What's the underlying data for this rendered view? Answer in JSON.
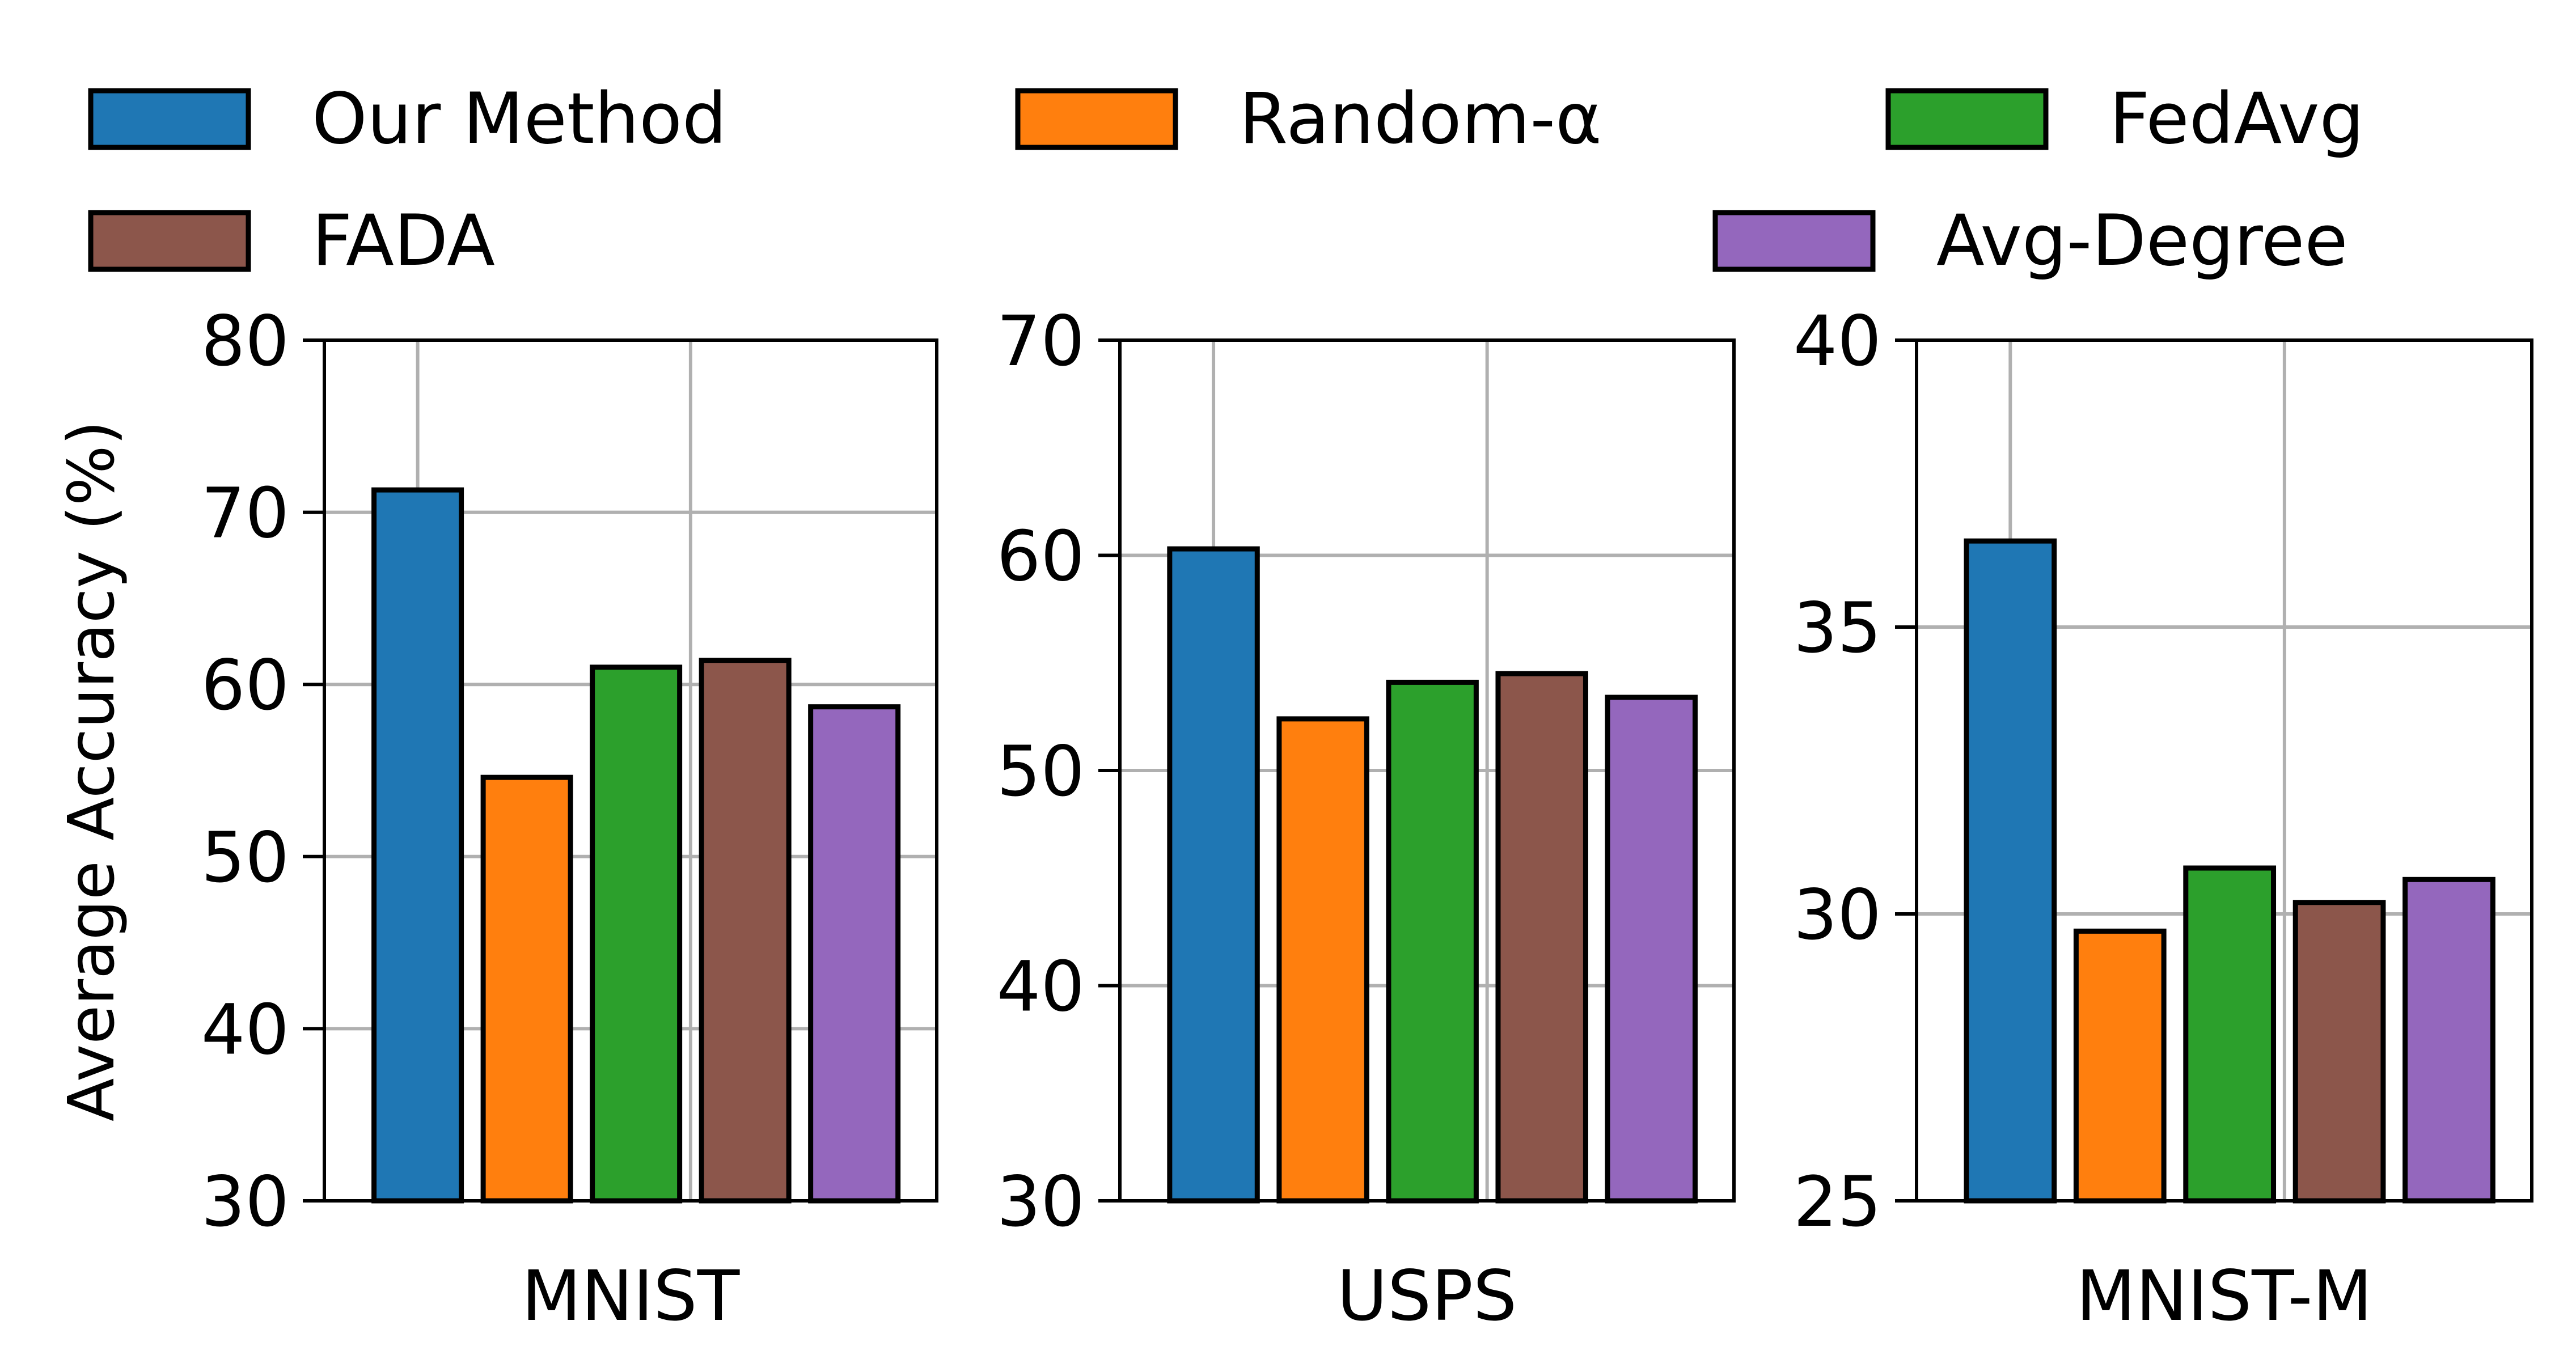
{
  "chart_data": [
    {
      "type": "bar",
      "categories": [
        "MNIST"
      ],
      "series": [
        {
          "name": "Our Method",
          "values": [
            71.3
          ]
        },
        {
          "name": "Random-α",
          "values": [
            54.6
          ]
        },
        {
          "name": "FedAvg",
          "values": [
            61.0
          ]
        },
        {
          "name": "FADA",
          "values": [
            61.4
          ]
        },
        {
          "name": "Avg-Degree",
          "values": [
            58.7
          ]
        }
      ],
      "ylim": [
        30,
        80
      ],
      "yticks": [
        30,
        40,
        50,
        60,
        70,
        80
      ],
      "xlabel": "MNIST",
      "ylabel": "Average Accuracy (%)",
      "grid": true
    },
    {
      "type": "bar",
      "categories": [
        "USPS"
      ],
      "series": [
        {
          "name": "Our Method",
          "values": [
            60.3
          ]
        },
        {
          "name": "Random-α",
          "values": [
            52.4
          ]
        },
        {
          "name": "FedAvg",
          "values": [
            54.1
          ]
        },
        {
          "name": "FADA",
          "values": [
            54.5
          ]
        },
        {
          "name": "Avg-Degree",
          "values": [
            53.4
          ]
        }
      ],
      "ylim": [
        30,
        70
      ],
      "yticks": [
        30,
        40,
        50,
        60,
        70
      ],
      "xlabel": "USPS",
      "ylabel": "",
      "grid": true
    },
    {
      "type": "bar",
      "categories": [
        "MNIST-M"
      ],
      "series": [
        {
          "name": "Our Method",
          "values": [
            36.5
          ]
        },
        {
          "name": "Random-α",
          "values": [
            29.7
          ]
        },
        {
          "name": "FedAvg",
          "values": [
            30.8
          ]
        },
        {
          "name": "FADA",
          "values": [
            30.2
          ]
        },
        {
          "name": "Avg-Degree",
          "values": [
            30.6
          ]
        }
      ],
      "ylim": [
        25,
        40
      ],
      "yticks": [
        25,
        30,
        35,
        40
      ],
      "xlabel": "MNIST-M",
      "ylabel": "",
      "grid": true
    }
  ],
  "legend": {
    "placement": "top",
    "items": [
      {
        "label": "Our Method",
        "color": "#1f77b4"
      },
      {
        "label": "Random-α",
        "color": "#ff7f0e"
      },
      {
        "label": "FedAvg",
        "color": "#2ca02c"
      },
      {
        "label": "FADA",
        "color": "#8c564b"
      },
      {
        "label": "Avg-Degree",
        "color": "#9467bd"
      }
    ]
  }
}
